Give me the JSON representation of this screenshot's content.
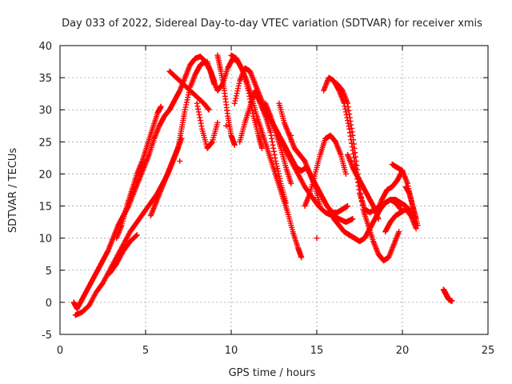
{
  "chart_data": {
    "type": "scatter",
    "title": "Day 033 of 2022, Sidereal Day-to-day VTEC variation (SDTVAR) for receiver xmis",
    "xlabel": "GPS time / hours",
    "ylabel": "SDTVAR / TECUs",
    "xlim": [
      0,
      25
    ],
    "ylim": [
      -5,
      40
    ],
    "xticks": [
      0,
      5,
      10,
      15,
      20,
      25
    ],
    "yticks": [
      -5,
      0,
      5,
      10,
      15,
      20,
      25,
      30,
      35,
      40
    ],
    "grid": true,
    "marker": "+",
    "color": "#ff0000",
    "tracks": [
      {
        "name": "track-1",
        "x": [
          0.8,
          1.0,
          1.3,
          1.6,
          1.9,
          2.2,
          2.5,
          2.8,
          3.1,
          3.4,
          3.7,
          4.0,
          4.3,
          4.6,
          4.9,
          5.2,
          5.5,
          5.8,
          6.1,
          6.4,
          6.7,
          7.0,
          7.3,
          7.6,
          7.9,
          8.2,
          8.5,
          8.8,
          9.0
        ],
        "y": [
          0.0,
          -1.0,
          0.5,
          2.0,
          3.5,
          5.0,
          6.5,
          8.0,
          10.0,
          12.0,
          13.5,
          15.0,
          17.0,
          19.0,
          21.0,
          23.0,
          25.5,
          27.5,
          29.0,
          30.0,
          31.5,
          33.0,
          35.0,
          37.0,
          38.0,
          38.3,
          37.5,
          36.0,
          34.5
        ]
      },
      {
        "name": "track-2",
        "x": [
          0.9,
          1.3,
          1.7,
          2.1,
          2.5,
          2.9,
          3.3,
          3.7,
          4.1,
          4.5,
          4.9,
          5.3,
          5.7,
          6.0,
          6.3,
          6.6,
          6.9,
          7.1,
          7.3,
          7.6,
          7.9,
          8.2,
          8.5,
          8.8,
          9.0
        ],
        "y": [
          -2.0,
          -1.5,
          -0.5,
          1.5,
          3.0,
          5.0,
          7.0,
          9.0,
          11.0,
          12.5,
          14.0,
          15.5,
          17.0,
          18.5,
          20.0,
          22.0,
          24.0,
          27.0,
          30.0,
          33.5,
          35.5,
          37.0,
          37.5,
          36.0,
          34.0
        ]
      },
      {
        "name": "track-3",
        "x": [
          3.3,
          3.6,
          3.9,
          4.2,
          4.5,
          4.8,
          5.1,
          5.4,
          5.7,
          5.9
        ],
        "y": [
          10.0,
          12.0,
          15.0,
          17.5,
          20.0,
          22.0,
          24.5,
          27.0,
          29.5,
          30.5
        ]
      },
      {
        "name": "track-4",
        "x": [
          2.9,
          3.3,
          3.7,
          4.1,
          4.5
        ],
        "y": [
          4.5,
          6.0,
          8.0,
          9.5,
          10.5
        ]
      },
      {
        "name": "track-5",
        "x": [
          5.3,
          5.6,
          5.9,
          6.2,
          6.5,
          6.8,
          7.1
        ],
        "y": [
          13.5,
          15.5,
          17.5,
          19.5,
          21.5,
          23.5,
          25.5
        ]
      },
      {
        "name": "track-6",
        "x": [
          6.4,
          6.8,
          7.2,
          7.6,
          8.0,
          8.4,
          8.7
        ],
        "y": [
          36.0,
          35.0,
          34.0,
          33.0,
          32.0,
          31.0,
          30.0
        ]
      },
      {
        "name": "track-7",
        "x": [
          8.0,
          8.3,
          8.6,
          8.9,
          9.2
        ],
        "y": [
          31.0,
          27.0,
          24.0,
          25.0,
          28.0
        ]
      },
      {
        "name": "track-8",
        "x": [
          8.6,
          8.9,
          9.2,
          9.5,
          9.8,
          10.1,
          10.4,
          10.7,
          11.0,
          11.3,
          11.6,
          11.8
        ],
        "y": [
          37.5,
          35.0,
          33.0,
          34.0,
          36.5,
          38.0,
          37.5,
          36.0,
          33.0,
          29.0,
          26.0,
          24.0
        ]
      },
      {
        "name": "track-9",
        "x": [
          9.2,
          9.4,
          9.6,
          9.8,
          10.0,
          10.2
        ],
        "y": [
          38.5,
          36.0,
          33.0,
          29.0,
          26.0,
          24.5
        ]
      },
      {
        "name": "track-10",
        "x": [
          10.0,
          10.3,
          10.6,
          10.9,
          11.2,
          11.5,
          11.8,
          12.1,
          12.4,
          12.7,
          13.0,
          13.3,
          13.6,
          13.9,
          14.1
        ],
        "y": [
          38.5,
          38.0,
          36.5,
          34.5,
          32.0,
          29.0,
          26.5,
          24.0,
          21.5,
          19.0,
          16.5,
          14.0,
          11.0,
          8.5,
          7.0
        ]
      },
      {
        "name": "track-11",
        "x": [
          10.2,
          10.5,
          10.8,
          11.1,
          11.4,
          11.7,
          12.0,
          12.3,
          12.6,
          12.9,
          13.2,
          13.5,
          13.8,
          14.1,
          14.4,
          14.7,
          15.0,
          15.3,
          15.6,
          15.9,
          16.2,
          16.5,
          16.8
        ],
        "y": [
          31.0,
          34.5,
          36.5,
          36.0,
          34.0,
          32.0,
          30.0,
          28.5,
          27.0,
          25.5,
          24.0,
          22.5,
          21.0,
          20.5,
          21.0,
          19.5,
          18.0,
          16.5,
          15.0,
          14.0,
          14.0,
          14.5,
          15.0
        ]
      },
      {
        "name": "track-12",
        "x": [
          10.5,
          10.8,
          11.1,
          11.4,
          11.7,
          12.0,
          12.3,
          12.6,
          12.9,
          13.2
        ],
        "y": [
          25.0,
          28.0,
          30.5,
          33.0,
          31.0,
          29.0,
          26.5,
          22.0,
          18.5,
          15.5
        ]
      },
      {
        "name": "track-13",
        "x": [
          11.5,
          11.9,
          12.3,
          12.7,
          13.1,
          13.5,
          13.9,
          14.3,
          14.7,
          15.1,
          15.5,
          15.9,
          16.3,
          16.7,
          17.1
        ],
        "y": [
          32.0,
          30.5,
          28.5,
          26.5,
          24.0,
          22.0,
          20.0,
          18.0,
          16.5,
          15.0,
          14.0,
          13.5,
          13.0,
          12.5,
          13.0
        ]
      },
      {
        "name": "track-14",
        "x": [
          12.0,
          12.3,
          12.6,
          12.9,
          13.2,
          13.5
        ],
        "y": [
          31.0,
          29.0,
          26.5,
          24.0,
          21.0,
          18.5
        ]
      },
      {
        "name": "track-15",
        "x": [
          12.8,
          13.1,
          13.4,
          13.7,
          14.0,
          14.3,
          14.6,
          14.9,
          15.2
        ],
        "y": [
          31.0,
          28.0,
          26.0,
          24.0,
          23.0,
          22.0,
          20.0,
          18.0,
          15.0
        ]
      },
      {
        "name": "track-16",
        "x": [
          14.3,
          14.6,
          14.9,
          15.2,
          15.5,
          15.8,
          16.1,
          16.4,
          16.7
        ],
        "y": [
          15.0,
          17.0,
          20.0,
          23.0,
          25.5,
          26.0,
          25.0,
          23.0,
          20.0
        ]
      },
      {
        "name": "track-17",
        "x": [
          15.4,
          15.7,
          16.0,
          16.3,
          16.6,
          16.9,
          17.2,
          17.5,
          17.8,
          18.1,
          18.4,
          18.7,
          19.0,
          19.3,
          19.6,
          19.9,
          20.2,
          20.5,
          20.8
        ],
        "y": [
          33.0,
          35.0,
          34.5,
          33.0,
          31.0,
          27.0,
          22.0,
          17.0,
          14.5,
          14.0,
          14.5,
          15.0,
          15.5,
          16.0,
          16.0,
          15.5,
          15.0,
          14.0,
          12.0
        ]
      },
      {
        "name": "track-18",
        "x": [
          16.2,
          16.5,
          16.8,
          17.1,
          17.4,
          17.7,
          18.0,
          18.3,
          18.6,
          18.9,
          19.2,
          19.5,
          19.8
        ],
        "y": [
          34.0,
          33.0,
          31.0,
          26.0,
          20.0,
          14.5,
          12.0,
          9.5,
          7.5,
          6.5,
          7.0,
          9.0,
          11.0
        ]
      },
      {
        "name": "track-19",
        "x": [
          16.0,
          16.3,
          16.6,
          16.9,
          17.2,
          17.5,
          17.8,
          18.1,
          18.4,
          18.7,
          19.0,
          19.3,
          19.6,
          19.9
        ],
        "y": [
          13.0,
          12.0,
          11.0,
          10.5,
          10.0,
          9.5,
          10.0,
          11.5,
          13.0,
          14.5,
          15.5,
          16.0,
          15.5,
          14.5
        ]
      },
      {
        "name": "track-20",
        "x": [
          16.8,
          17.1,
          17.4,
          17.7,
          18.0,
          18.3,
          18.6
        ],
        "y": [
          23.0,
          21.0,
          19.5,
          18.0,
          16.5,
          15.0,
          13.0
        ]
      },
      {
        "name": "track-21",
        "x": [
          18.5,
          18.8,
          19.1,
          19.4,
          19.7,
          20.0
        ],
        "y": [
          14.0,
          16.0,
          17.5,
          18.0,
          19.0,
          20.5
        ]
      },
      {
        "name": "track-22",
        "x": [
          19.4,
          19.7,
          20.0,
          20.3,
          20.6,
          20.9
        ],
        "y": [
          21.5,
          21.0,
          20.5,
          18.5,
          15.0,
          12.0
        ]
      },
      {
        "name": "track-23",
        "x": [
          19.0,
          19.3,
          19.6,
          19.9,
          20.2,
          20.5,
          20.8
        ],
        "y": [
          11.0,
          12.5,
          13.5,
          14.0,
          14.5,
          13.5,
          11.5
        ]
      },
      {
        "name": "track-24",
        "x": [
          20.2,
          20.4,
          20.6,
          20.8
        ],
        "y": [
          18.0,
          17.0,
          15.0,
          13.0
        ]
      },
      {
        "name": "track-25",
        "x": [
          22.4,
          22.5,
          22.6,
          22.7,
          22.8,
          22.9
        ],
        "y": [
          2.0,
          1.5,
          1.0,
          0.5,
          0.3,
          0.2
        ]
      }
    ],
    "isolated_points": {
      "x": [
        13.5,
        15.0,
        7.0,
        9.7,
        18.5
      ],
      "y": [
        26.0,
        10.0,
        22.0,
        27.5,
        14.5
      ]
    }
  }
}
